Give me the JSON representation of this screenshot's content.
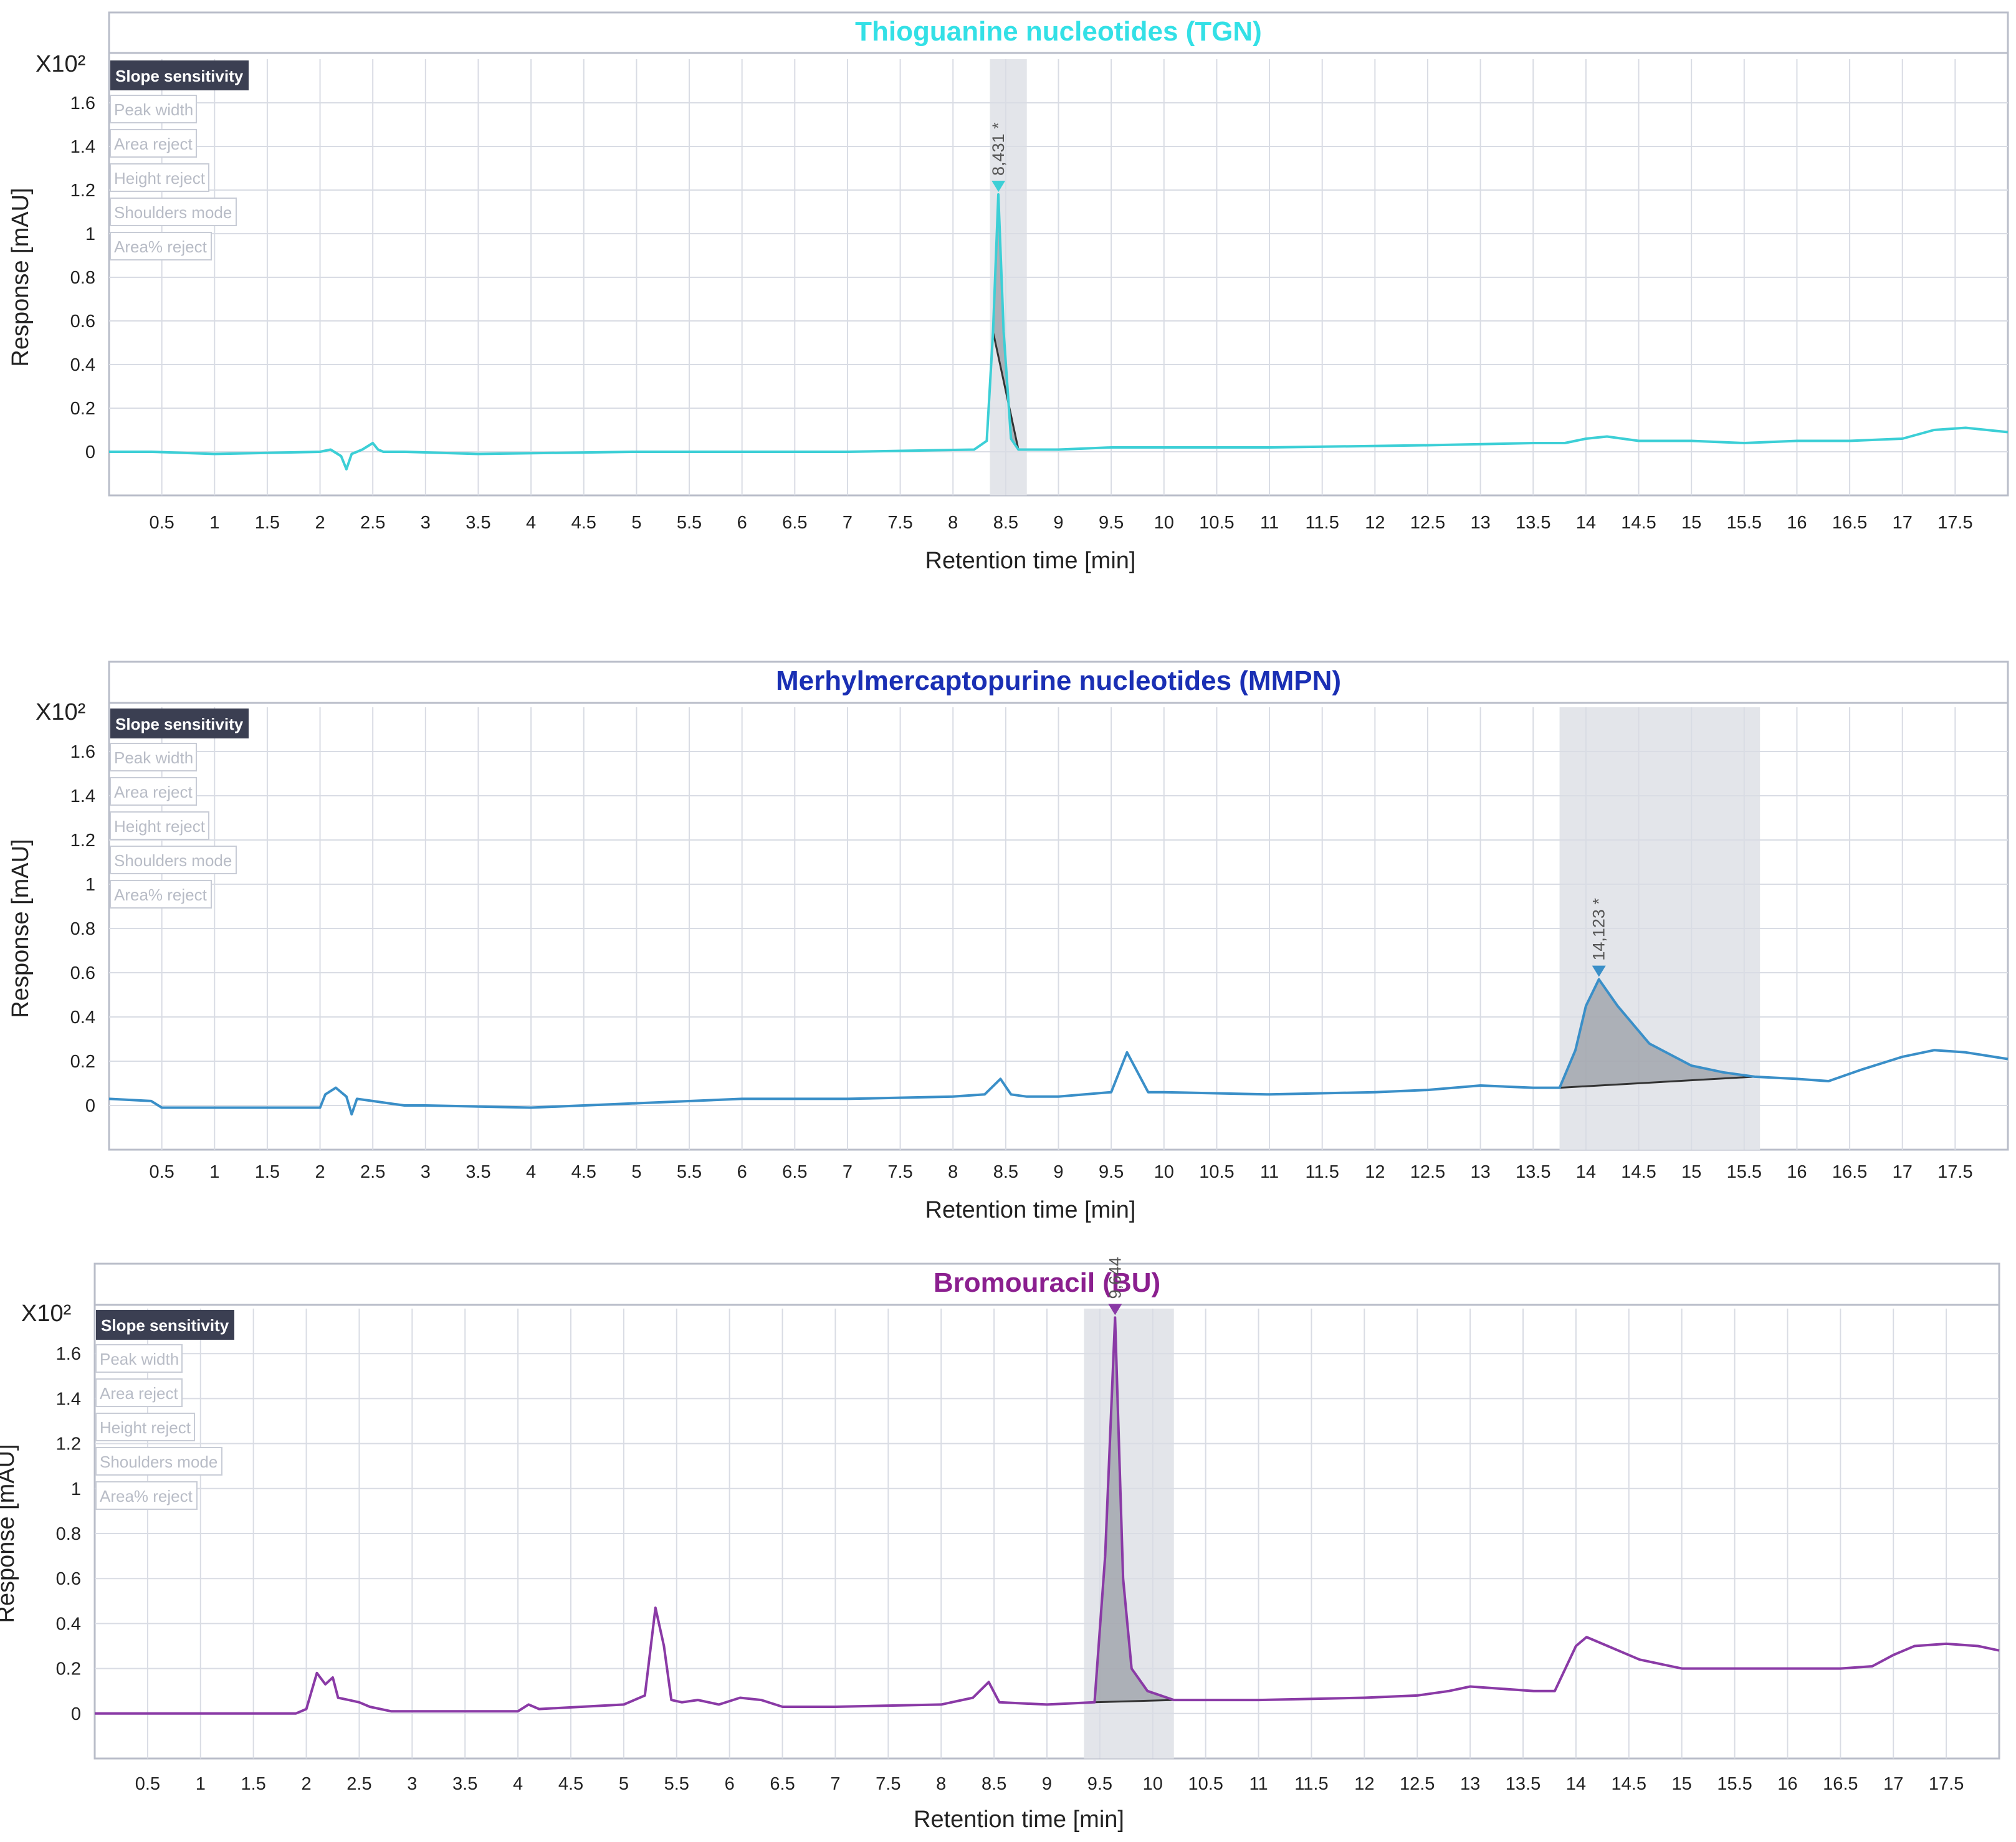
{
  "colors": {
    "tgn": "#3ccfd6",
    "mmpn": "#3a8fc8",
    "bu": "#8a3aa6",
    "tgn_title": "#33e0e6",
    "mmpn_title": "#1a2fb4",
    "bu_title": "#8b1f8f",
    "grid": "#d9dce4",
    "frame": "#b9bdc9",
    "highlight": "#e3e5ea",
    "peak_fill": "#9a9ea6",
    "button_bg": "#3b3f52"
  },
  "options": {
    "active": "Slope sensitivity",
    "inactive": [
      "Peak width",
      "Area reject",
      "Height reject",
      "Shoulders mode",
      "Area% reject"
    ]
  },
  "chart_data": [
    {
      "type": "line",
      "title": "Thioguanine nucleotides (TGN)",
      "xlabel": "Retention time [min]",
      "ylabel": "Response [mAU]",
      "y_scale_label": "X10²",
      "xlim": [
        0,
        18
      ],
      "ylim": [
        -0.2,
        1.8
      ],
      "x_ticks": [
        "0.5",
        "1",
        "1.5",
        "2",
        "2.5",
        "3",
        "3.5",
        "4",
        "4.5",
        "5",
        "5.5",
        "6",
        "6.5",
        "7",
        "7.5",
        "8",
        "8.5",
        "9",
        "9.5",
        "10",
        "10.5",
        "11",
        "11.5",
        "12",
        "12.5",
        "13",
        "13.5",
        "14",
        "14.5",
        "15",
        "15.5",
        "16",
        "16.5",
        "17",
        "17.5"
      ],
      "y_ticks": [
        "0",
        "0.2",
        "0.4",
        "0.6",
        "0.8",
        "1",
        "1.2",
        "1.4",
        "1.6"
      ],
      "peak_label": "8,431 *",
      "peak_time": 8.431,
      "peak_height": 1.18,
      "integration_window": [
        8.35,
        8.7
      ],
      "series": [
        {
          "x": [
            0,
            0.4,
            1.0,
            2.0,
            2.1,
            2.2,
            2.25,
            2.3,
            2.4,
            2.5,
            2.55,
            2.6,
            2.8,
            3.5,
            5.0,
            7.0,
            8.2,
            8.32,
            8.38,
            8.43,
            8.48,
            8.55,
            8.62,
            9.0,
            9.5,
            11.0,
            12.5,
            13.5,
            13.8,
            14.0,
            14.2,
            14.5,
            15.0,
            15.5,
            16.0,
            16.5,
            17.0,
            17.3,
            17.6,
            18.0
          ],
          "y": [
            0,
            0,
            -0.01,
            0,
            0.01,
            -0.02,
            -0.08,
            -0.01,
            0.01,
            0.04,
            0.01,
            0,
            0,
            -0.01,
            0,
            0,
            0.01,
            0.05,
            0.55,
            1.18,
            0.55,
            0.06,
            0.01,
            0.01,
            0.02,
            0.02,
            0.03,
            0.04,
            0.04,
            0.06,
            0.07,
            0.05,
            0.05,
            0.04,
            0.05,
            0.05,
            0.06,
            0.1,
            0.11,
            0.09
          ]
        }
      ]
    },
    {
      "type": "line",
      "title": "Merhylmercaptopurine nucleotides (MMPN)",
      "xlabel": "Retention time [min]",
      "ylabel": "Response [mAU]",
      "y_scale_label": "X10²",
      "xlim": [
        0,
        18
      ],
      "ylim": [
        -0.2,
        1.8
      ],
      "x_ticks": [
        "0.5",
        "1",
        "1.5",
        "2",
        "2.5",
        "3",
        "3.5",
        "4",
        "4.5",
        "5",
        "5.5",
        "6",
        "6.5",
        "7",
        "7.5",
        "8",
        "8.5",
        "9",
        "9.5",
        "10",
        "10.5",
        "11",
        "11.5",
        "12",
        "12.5",
        "13",
        "13.5",
        "14",
        "14.5",
        "15",
        "15.5",
        "16",
        "16.5",
        "17",
        "17.5"
      ],
      "y_ticks": [
        "0",
        "0.2",
        "0.4",
        "0.6",
        "0.8",
        "1",
        "1.2",
        "1.4",
        "1.6"
      ],
      "peak_label": "14,123 *",
      "peak_time": 14.123,
      "peak_height": 0.57,
      "integration_window": [
        13.75,
        15.65
      ],
      "series": [
        {
          "x": [
            0,
            0.4,
            0.5,
            1.0,
            2.0,
            2.05,
            2.15,
            2.25,
            2.3,
            2.35,
            2.5,
            2.65,
            2.8,
            3.0,
            4.0,
            5.0,
            6.0,
            7.0,
            8.0,
            8.3,
            8.45,
            8.55,
            8.7,
            9.0,
            9.5,
            9.65,
            9.75,
            9.85,
            10.0,
            11.0,
            12.0,
            12.5,
            13.0,
            13.5,
            13.75,
            13.9,
            14.0,
            14.123,
            14.3,
            14.6,
            15.0,
            15.3,
            15.6,
            16.0,
            16.3,
            16.6,
            17.0,
            17.3,
            17.6,
            18.0
          ],
          "y": [
            0.03,
            0.02,
            -0.01,
            -0.01,
            -0.01,
            0.05,
            0.08,
            0.04,
            -0.04,
            0.03,
            0.02,
            0.01,
            0,
            0,
            -0.01,
            0.01,
            0.03,
            0.03,
            0.04,
            0.05,
            0.12,
            0.05,
            0.04,
            0.04,
            0.06,
            0.24,
            0.15,
            0.06,
            0.06,
            0.05,
            0.06,
            0.07,
            0.09,
            0.08,
            0.08,
            0.25,
            0.45,
            0.57,
            0.45,
            0.28,
            0.18,
            0.15,
            0.13,
            0.12,
            0.11,
            0.16,
            0.22,
            0.25,
            0.24,
            0.21
          ]
        }
      ]
    },
    {
      "type": "line",
      "title": "Bromouracil (BU)",
      "xlabel": "Retention time [min]",
      "ylabel": "Response [mAU]",
      "y_scale_label": "X10²",
      "xlim": [
        0,
        18
      ],
      "ylim": [
        -0.2,
        1.8
      ],
      "x_ticks": [
        "0.5",
        "1",
        "1.5",
        "2",
        "2.5",
        "3",
        "3.5",
        "4",
        "4.5",
        "5",
        "5.5",
        "6",
        "6.5",
        "7",
        "7.5",
        "8",
        "8.5",
        "9",
        "9.5",
        "10",
        "10.5",
        "11",
        "11.5",
        "12",
        "12.5",
        "13",
        "13.5",
        "14",
        "14.5",
        "15",
        "15.5",
        "16",
        "16.5",
        "17",
        "17.5"
      ],
      "y_ticks": [
        "0",
        "0.2",
        "0.4",
        "0.6",
        "0.8",
        "1",
        "1.2",
        "1.4",
        "1.6"
      ],
      "peak_label": "9,644 *",
      "peak_time": 9.644,
      "peak_height": 1.76,
      "integration_window": [
        9.35,
        10.2
      ],
      "series": [
        {
          "x": [
            0,
            1.0,
            1.9,
            2.0,
            2.1,
            2.18,
            2.25,
            2.3,
            2.4,
            2.5,
            2.6,
            2.8,
            3.0,
            4.0,
            4.1,
            4.2,
            5.0,
            5.2,
            5.3,
            5.38,
            5.45,
            5.55,
            5.7,
            5.9,
            6.1,
            6.3,
            6.5,
            7.0,
            8.0,
            8.3,
            8.45,
            8.55,
            9.0,
            9.45,
            9.55,
            9.644,
            9.72,
            9.8,
            9.95,
            10.2,
            11.0,
            12.0,
            12.5,
            12.8,
            13.0,
            13.3,
            13.6,
            13.8,
            13.9,
            14.0,
            14.1,
            14.3,
            14.6,
            15.0,
            15.5,
            16.0,
            16.5,
            16.8,
            17.0,
            17.2,
            17.5,
            17.8,
            18.0
          ],
          "y": [
            0,
            0,
            0,
            0.02,
            0.18,
            0.13,
            0.16,
            0.07,
            0.06,
            0.05,
            0.03,
            0.01,
            0.01,
            0.01,
            0.04,
            0.02,
            0.04,
            0.08,
            0.47,
            0.3,
            0.06,
            0.05,
            0.06,
            0.04,
            0.07,
            0.06,
            0.03,
            0.03,
            0.04,
            0.07,
            0.14,
            0.05,
            0.04,
            0.05,
            0.7,
            1.76,
            0.6,
            0.2,
            0.1,
            0.06,
            0.06,
            0.07,
            0.08,
            0.1,
            0.12,
            0.11,
            0.1,
            0.1,
            0.2,
            0.3,
            0.34,
            0.3,
            0.24,
            0.2,
            0.2,
            0.2,
            0.2,
            0.21,
            0.26,
            0.3,
            0.31,
            0.3,
            0.28
          ]
        }
      ]
    }
  ]
}
